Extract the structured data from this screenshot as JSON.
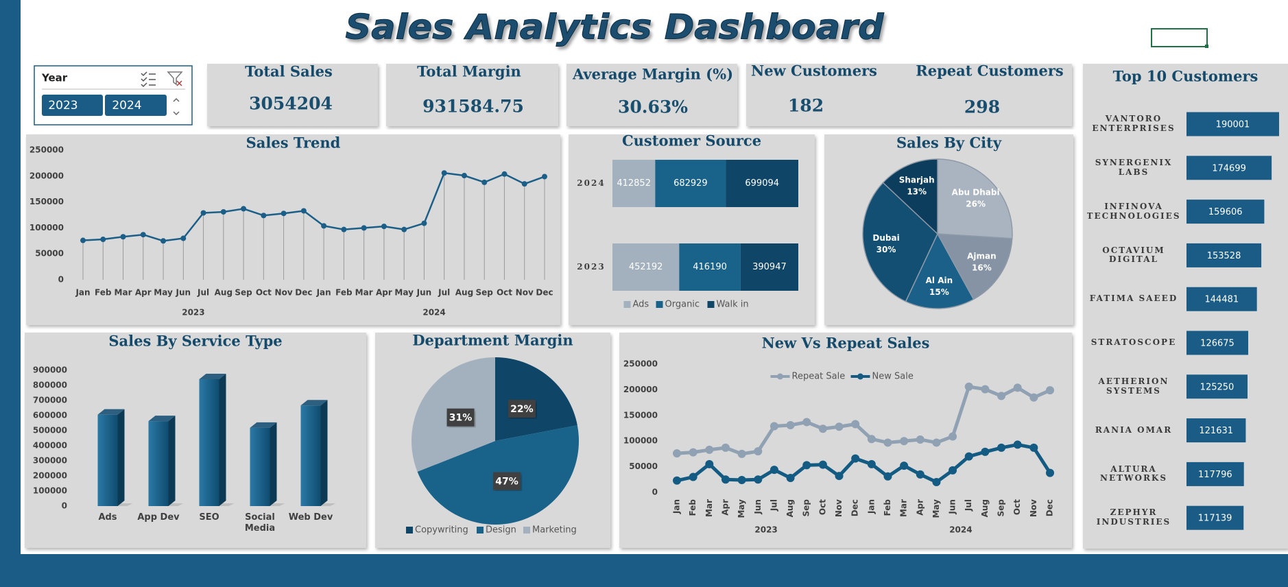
{
  "title": "Sales Analytics Dashboard",
  "slicer": {
    "label": "Year",
    "items": [
      "2023",
      "2024"
    ]
  },
  "kpis": [
    {
      "label": "Total Sales",
      "value": 3054204
    },
    {
      "label": "Total Margin",
      "value": 931584.75
    },
    {
      "label": "Average Margin (%)",
      "value": "30.63%"
    },
    {
      "label": "New Customers",
      "value": 182
    },
    {
      "label": "Repeat Customers",
      "value": 298
    }
  ],
  "chart_data": [
    {
      "type": "line",
      "title": "Sales Trend",
      "categories": [
        "Jan",
        "Feb",
        "Mar",
        "Apr",
        "May",
        "Jun",
        "Jul",
        "Aug",
        "Sep",
        "Oct",
        "Nov",
        "Dec",
        "Jan",
        "Feb",
        "Mar",
        "Apr",
        "May",
        "Jun",
        "Jul",
        "Aug",
        "Sep",
        "Oct",
        "Nov",
        "Dec"
      ],
      "x_groups": [
        "2023",
        "2024"
      ],
      "values": [
        76000,
        78000,
        83000,
        87000,
        75000,
        80000,
        129000,
        131000,
        137000,
        124000,
        128000,
        133000,
        104000,
        97000,
        100000,
        103000,
        97000,
        109000,
        206000,
        201000,
        188000,
        204000,
        185000,
        199000
      ],
      "color": "#1b5f88",
      "drop_lines": true,
      "ylim": [
        0,
        250000
      ],
      "yticks": [
        0,
        50000,
        100000,
        150000,
        200000,
        250000
      ]
    },
    {
      "type": "stacked_bar_h",
      "title": "Customer Source",
      "percent_stacked": true,
      "categories": [
        "2024",
        "2023"
      ],
      "series": [
        {
          "name": "Ads",
          "color": "#a3b1bf",
          "values": [
            412852,
            452192
          ]
        },
        {
          "name": "Organic",
          "color": "#19628a",
          "values": [
            682929,
            416190
          ]
        },
        {
          "name": "Walk in",
          "color": "#0f4566",
          "values": [
            699094,
            390947
          ]
        }
      ],
      "legend": "bottom"
    },
    {
      "type": "pie",
      "title": "Sales By City",
      "categories": [
        "Abu Dhabi",
        "Ajman",
        "Al Ain",
        "Dubai",
        "Sharjah"
      ],
      "values": [
        26,
        16,
        15,
        30,
        13
      ],
      "value_labels": [
        "26%",
        "16%",
        "15%",
        "30%",
        "13%"
      ],
      "colors": [
        "#aab4c0",
        "#8593a4",
        "#1a6088",
        "#124f72",
        "#0d3d5c"
      ]
    },
    {
      "type": "bar",
      "title": "Sales By Service Type",
      "categories": [
        "Ads",
        "App Dev",
        "SEO",
        "Social Media",
        "Web Dev"
      ],
      "values": [
        606000,
        563000,
        841000,
        519000,
        667000
      ],
      "color": "#1a6690",
      "ylim": [
        0,
        900000
      ],
      "yticks": [
        0,
        100000,
        200000,
        300000,
        400000,
        500000,
        600000,
        700000,
        800000,
        900000
      ]
    },
    {
      "type": "pie",
      "title": "Department Margin",
      "categories": [
        "Copywriting",
        "Design",
        "Marketing"
      ],
      "values": [
        22,
        47,
        31
      ],
      "value_labels": [
        "22%",
        "47%",
        "31%"
      ],
      "colors": [
        "#0f4566",
        "#19628a",
        "#a3b1bf"
      ],
      "legend": "bottom"
    },
    {
      "type": "line",
      "title": "New Vs Repeat Sales",
      "categories": [
        "Jan",
        "Feb",
        "Mar",
        "Apr",
        "May",
        "Jun",
        "Jul",
        "Aug",
        "Sep",
        "Oct",
        "Nov",
        "Dec",
        "Jan",
        "Feb",
        "Mar",
        "Apr",
        "May",
        "Jun",
        "Jul",
        "Aug",
        "Sep",
        "Oct",
        "Nov",
        "Dec"
      ],
      "x_groups": [
        "2023",
        "2024"
      ],
      "series": [
        {
          "name": "Repeat Sale",
          "color": "#8fa1b3",
          "values": [
            76000,
            78000,
            83000,
            87000,
            75000,
            80000,
            129000,
            131000,
            137000,
            124000,
            128000,
            133000,
            104000,
            97000,
            100000,
            103000,
            97000,
            109000,
            206000,
            201000,
            188000,
            204000,
            185000,
            199000
          ]
        },
        {
          "name": "New Sale",
          "color": "#135b82",
          "values": [
            23000,
            30000,
            55000,
            25000,
            24000,
            25000,
            44000,
            28000,
            53000,
            54000,
            32000,
            66000,
            55000,
            31000,
            52000,
            35000,
            20000,
            43000,
            70000,
            79000,
            87000,
            93000,
            87000,
            38000
          ]
        }
      ],
      "legend": "top",
      "ylim": [
        0,
        250000
      ],
      "yticks": [
        0,
        50000,
        100000,
        150000,
        200000,
        250000
      ]
    },
    {
      "type": "bar",
      "orientation": "horizontal",
      "title": "Top 10 Customers",
      "categories": [
        "VANTORO ENTERPRISES",
        "SYNERGENIX LABS",
        "INFINOVA TECHNOLOGIES",
        "OCTAVIUM DIGITAL",
        "FATIMA SAEED",
        "STRATOSCOPE",
        "AETHERION SYSTEMS",
        "RANIA OMAR",
        "ALTURA NETWORKS",
        "ZEPHYR INDUSTRIES"
      ],
      "values": [
        190001,
        174699,
        159606,
        153528,
        144481,
        126675,
        125250,
        121631,
        117796,
        117139
      ],
      "color": "#1a5c85"
    }
  ]
}
